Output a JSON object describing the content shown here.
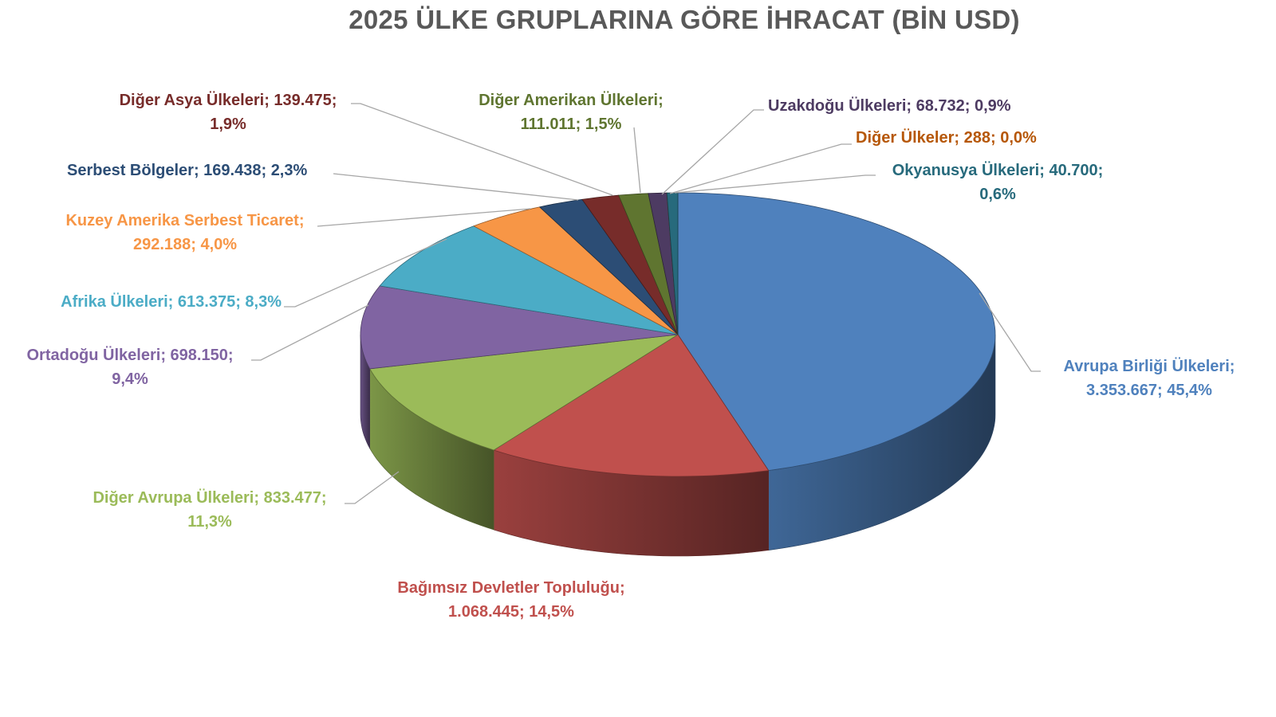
{
  "chart_data": {
    "type": "pie",
    "style": "3d",
    "title": "2025 ÜLKE GRUPLARINA GÖRE İHRACAT (BİN USD)",
    "start": "top, clockwise",
    "slices": [
      {
        "name": "Avrupa Birliği Ülkeleri",
        "value": 3353667,
        "value_label": "3.353.667",
        "percent": "45,4%",
        "color": "#4F81BD",
        "label_color": "#4F81BD"
      },
      {
        "name": "Bağımsız Devletler Topluluğu",
        "value": 1068445,
        "value_label": "1.068.445",
        "percent": "14,5%",
        "color": "#C0504D",
        "label_color": "#C0504D"
      },
      {
        "name": "Diğer Avrupa Ülkeleri",
        "value": 833477,
        "value_label": "833.477",
        "percent": "11,3%",
        "color": "#9BBB59",
        "label_color": "#9BBB59"
      },
      {
        "name": "Ortadoğu Ülkeleri",
        "value": 698150,
        "value_label": "698.150",
        "percent": "9,4%",
        "color": "#8064A2",
        "label_color": "#8064A2"
      },
      {
        "name": "Afrika Ülkeleri",
        "value": 613375,
        "value_label": "613.375",
        "percent": "8,3%",
        "color": "#4BACC6",
        "label_color": "#4BACC6"
      },
      {
        "name": "Kuzey Amerika Serbest Ticaret",
        "value": 292188,
        "value_label": "292.188",
        "percent": "4,0%",
        "color": "#F79646",
        "label_color": "#F79646"
      },
      {
        "name": "Serbest Bölgeler",
        "value": 169438,
        "value_label": "169.438",
        "percent": "2,3%",
        "color": "#2C4D75",
        "label_color": "#2C4D75"
      },
      {
        "name": "Diğer Asya Ülkeleri",
        "value": 139475,
        "value_label": "139.475",
        "percent": "1,9%",
        "color": "#772C2A",
        "label_color": "#772C2A"
      },
      {
        "name": "Diğer Amerikan Ülkeleri",
        "value": 111011,
        "value_label": "111.011",
        "percent": "1,5%",
        "color": "#5F7530",
        "label_color": "#5F7530"
      },
      {
        "name": "Uzakdoğu Ülkeleri",
        "value": 68732,
        "value_label": "68.732",
        "percent": "0,9%",
        "color": "#4D3B62",
        "label_color": "#4D3B62"
      },
      {
        "name": "Diğer Ülkeler",
        "value": 288,
        "value_label": "288",
        "percent": "0,0%",
        "color": "#B65708",
        "label_color": "#B65708"
      },
      {
        "name": "Okyanusya Ülkeleri",
        "value": 40700,
        "value_label": "40.700",
        "percent": "0,6%",
        "color": "#276A7C",
        "label_color": "#276A7C"
      }
    ]
  }
}
